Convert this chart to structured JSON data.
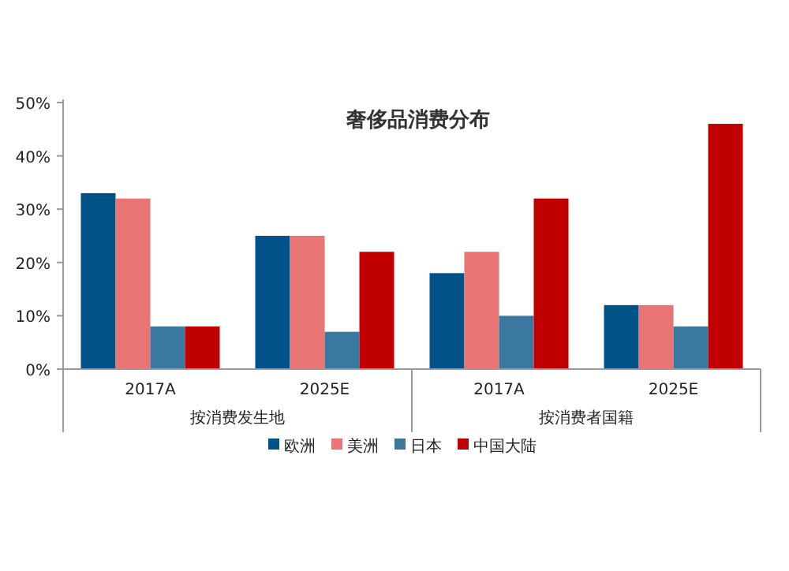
{
  "chart_data": {
    "type": "bar",
    "title": "奢侈品消费分布",
    "categories": [
      "2017A",
      "2025E",
      "2017A",
      "2025E"
    ],
    "series": [
      {
        "name": "欧洲",
        "color": "#005288",
        "values": [
          33,
          25,
          18,
          12
        ]
      },
      {
        "name": "美洲",
        "color": "#e87474",
        "values": [
          32,
          25,
          22,
          12
        ]
      },
      {
        "name": "日本",
        "color": "#3a78a0",
        "values": [
          8,
          7,
          10,
          8
        ]
      },
      {
        "name": "中国大陆",
        "color": "#c00000",
        "values": [
          8,
          22,
          32,
          46
        ]
      }
    ],
    "ylim": [
      0,
      50
    ],
    "yticks": [
      {
        "value": 0,
        "label": "0%"
      },
      {
        "value": 10,
        "label": "10%"
      },
      {
        "value": 20,
        "label": "20%"
      },
      {
        "value": 30,
        "label": "30%"
      },
      {
        "value": 40,
        "label": "40%"
      },
      {
        "value": 50,
        "label": "50%"
      }
    ],
    "legend": "bottom",
    "annotations": [
      "按消费发生地",
      "按消费者国籍"
    ]
  }
}
